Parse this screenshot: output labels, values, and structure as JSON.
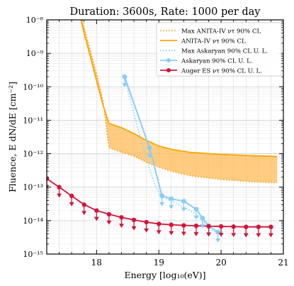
{
  "chart_data": {
    "type": "line",
    "title": "Duration: 3600s, Rate: 1000 per day",
    "xlabel": "Energy [log₁₀(eV)]",
    "ylabel": "Fluence, E dN/dE [cm⁻²]",
    "xlim": [
      17.2,
      21.0
    ],
    "ylim": [
      1e-15,
      1e-08
    ],
    "yscale": "log",
    "grid": true,
    "legend_position": "top-right",
    "x_ticks": [
      {
        "value": 18,
        "label": "18"
      },
      {
        "value": 19,
        "label": "19"
      },
      {
        "value": 20,
        "label": "20"
      },
      {
        "value": 21,
        "label": "21"
      }
    ],
    "y_ticks": [
      {
        "value": 1e-15,
        "label": "10⁻¹⁵"
      },
      {
        "value": 1e-14,
        "label": "10⁻¹⁴"
      },
      {
        "value": 1e-13,
        "label": "10⁻¹³"
      },
      {
        "value": 1e-12,
        "label": "10⁻¹²"
      },
      {
        "value": 1e-11,
        "label": "10⁻¹¹"
      },
      {
        "value": 1e-10,
        "label": "10⁻¹⁰"
      },
      {
        "value": 1e-09,
        "label": "10⁻⁹"
      },
      {
        "value": 1e-08,
        "label": "10⁻⁸"
      }
    ],
    "series": [
      {
        "name": "Max ANITA-IV ντ 90% CL",
        "style": "dotted",
        "color": "#e8a020",
        "x": [
          17.7,
          17.8,
          17.9,
          18.0,
          18.1,
          18.2,
          18.4,
          18.6,
          18.8,
          19.0,
          19.2,
          19.5,
          20.0,
          20.5,
          20.9
        ],
        "y": [
          3e-08,
          6e-09,
          1.2e-09,
          2.5e-10,
          4e-11,
          1.5e-12,
          1.1e-12,
          8.5e-13,
          5.5e-13,
          4e-13,
          3e-13,
          2.2e-13,
          1.7e-13,
          1.45e-13,
          1.35e-13
        ]
      },
      {
        "name": "ANITA-IV ντ 90% CL",
        "style": "solid",
        "color": "#ffa500",
        "x": [
          17.7,
          17.8,
          17.9,
          18.0,
          18.1,
          18.2,
          18.4,
          18.6,
          18.8,
          19.0,
          19.2,
          19.5,
          20.0,
          20.5,
          20.9
        ],
        "y": [
          2.5e-08,
          4e-09,
          8e-10,
          1.5e-10,
          3e-11,
          8e-12,
          6e-12,
          4e-12,
          2.5e-12,
          1.7e-12,
          1.35e-12,
          1.1e-12,
          9.5e-13,
          8.7e-13,
          8.2e-13
        ]
      },
      {
        "name": "Max Askaryan 90% CL U. L.",
        "style": "dotted",
        "color": "#87cefa",
        "x": [
          18.45,
          18.55,
          18.65,
          18.75,
          18.85,
          18.95,
          19.05,
          19.2,
          19.4,
          19.6,
          19.7,
          19.8,
          19.95
        ],
        "y": [
          2e-10,
          3.5e-11,
          7e-12,
          1.5e-12,
          3.5e-13,
          1e-13,
          5e-14,
          4e-14,
          2.5e-14,
          1.6e-14,
          1e-14,
          6e-15,
          4e-15
        ]
      },
      {
        "name": "Askaryan 90% CL U. L.",
        "style": "solid",
        "color": "#87cefa",
        "x": [
          18.45,
          18.85,
          19.05,
          19.2,
          19.4,
          19.6,
          19.7,
          19.8,
          19.95
        ],
        "y": [
          2e-10,
          1.5e-12,
          5.5e-14,
          4.5e-14,
          3.8e-14,
          2.2e-14,
          1.2e-14,
          7e-15,
          4.5e-15
        ]
      },
      {
        "name": "Auger ES ντ 90% CL U. L.",
        "style": "solid",
        "color": "#d2143c",
        "x": [
          17.2,
          17.4,
          17.6,
          17.8,
          18.0,
          18.2,
          18.4,
          18.6,
          18.8,
          19.0,
          19.2,
          19.4,
          19.6,
          19.8,
          20.0,
          20.2,
          20.4,
          20.6,
          20.8
        ],
        "y": [
          1.8e-13,
          1e-13,
          5.5e-14,
          3e-14,
          2e-14,
          1.55e-14,
          1.25e-14,
          1.05e-14,
          9e-15,
          8e-15,
          7.5e-15,
          7.2e-15,
          7e-15,
          6.8e-15,
          6.7e-15,
          6.6e-15,
          6.5e-15,
          6.5e-15,
          6.5e-15
        ]
      }
    ]
  }
}
